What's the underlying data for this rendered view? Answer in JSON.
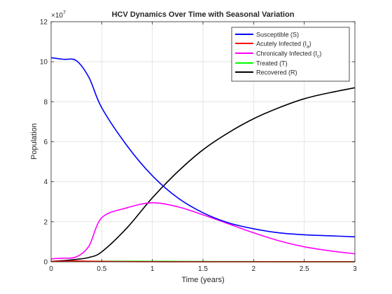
{
  "chart_data": {
    "type": "line",
    "title": "HCV Dynamics Over Time with Seasonal Variation",
    "xlabel": "Time (years)",
    "ylabel": "Population",
    "xlim": [
      0,
      3
    ],
    "ylim": [
      0,
      120000000
    ],
    "x_ticks": [
      "0",
      "0.5",
      "1",
      "1.5",
      "2",
      "2.5",
      "3"
    ],
    "y_ticks": [
      "0",
      "2",
      "4",
      "6",
      "8",
      "10",
      "12"
    ],
    "y_exponent_label": "×10",
    "y_exponent_power": "7",
    "grid": true,
    "legend_position": "top-right",
    "x": [
      0,
      0.125,
      0.25,
      0.375,
      0.5,
      0.75,
      1,
      1.25,
      1.5,
      1.75,
      2,
      2.25,
      2.5,
      2.75,
      3
    ],
    "series": [
      {
        "name": "Susceptible (S)",
        "color": "#0000ff",
        "values": [
          102000000,
          101200000,
          100500000,
          92000000,
          77000000,
          58000000,
          43000000,
          32000000,
          24500000,
          19500000,
          16500000,
          14500000,
          13500000,
          13000000,
          12500000
        ]
      },
      {
        "name": "Acutely Infected (I_a)",
        "label_main": "Acutely Infected (I",
        "label_sub": "a",
        "label_end": ")",
        "color": "#ff0000",
        "values": [
          200000,
          300000,
          400000,
          300000,
          200000,
          100000,
          50000,
          30000,
          20000,
          10000,
          10000,
          10000,
          10000,
          10000,
          10000
        ]
      },
      {
        "name": "Chronically Infected (I_c)",
        "label_main": "Chronically Infected (I",
        "label_sub": "c",
        "label_end": ")",
        "color": "#ff00ff",
        "values": [
          1500000,
          1800000,
          2500000,
          8000000,
          22000000,
          27000000,
          29500000,
          27500000,
          23500000,
          19000000,
          14500000,
          10500000,
          7500000,
          5500000,
          4000000
        ]
      },
      {
        "name": "Treated (T)",
        "color": "#00ff00",
        "values": [
          100000,
          150000,
          200000,
          250000,
          300000,
          300000,
          250000,
          200000,
          150000,
          120000,
          100000,
          80000,
          70000,
          60000,
          50000
        ]
      },
      {
        "name": "Recovered (R)",
        "color": "#000000",
        "values": [
          200000,
          600000,
          1200000,
          2200000,
          5000000,
          17000000,
          32000000,
          45000000,
          56000000,
          64500000,
          71500000,
          77000000,
          81500000,
          84500000,
          87000000
        ]
      }
    ]
  }
}
